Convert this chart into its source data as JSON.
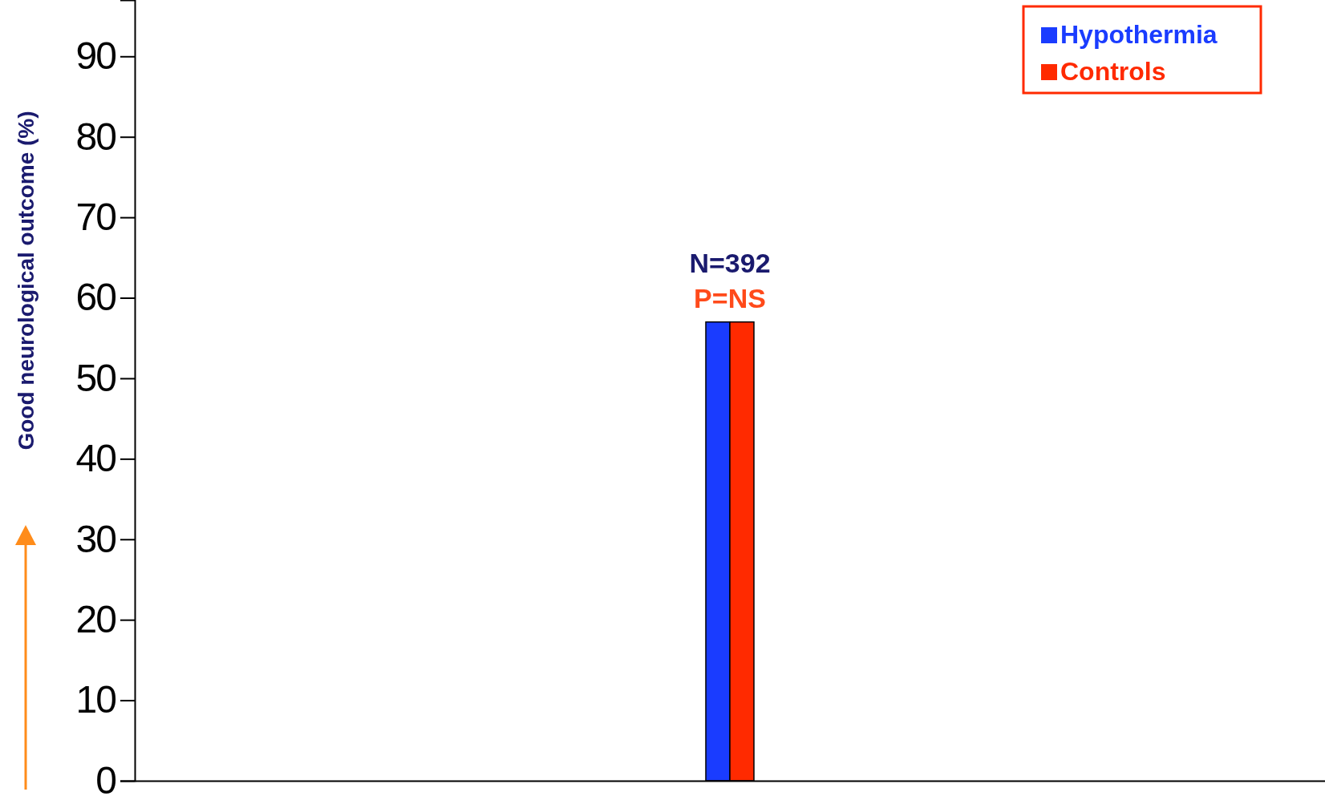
{
  "chart_data": {
    "type": "bar",
    "ylabel": "Good neurological outcome (%)",
    "categories": [
      null
    ],
    "series": [
      {
        "name": "Hypothermia",
        "color": "#1a3cff",
        "values": [
          57
        ]
      },
      {
        "name": "Controls",
        "color": "#ff2a00",
        "values": [
          57
        ]
      }
    ],
    "ylim": [
      0,
      97
    ],
    "yticks": [
      0,
      10,
      20,
      30,
      40,
      50,
      60,
      70,
      80,
      90
    ],
    "grid": false,
    "legend": "top right",
    "annotations": [
      "N=392",
      "P=NS"
    ]
  }
}
